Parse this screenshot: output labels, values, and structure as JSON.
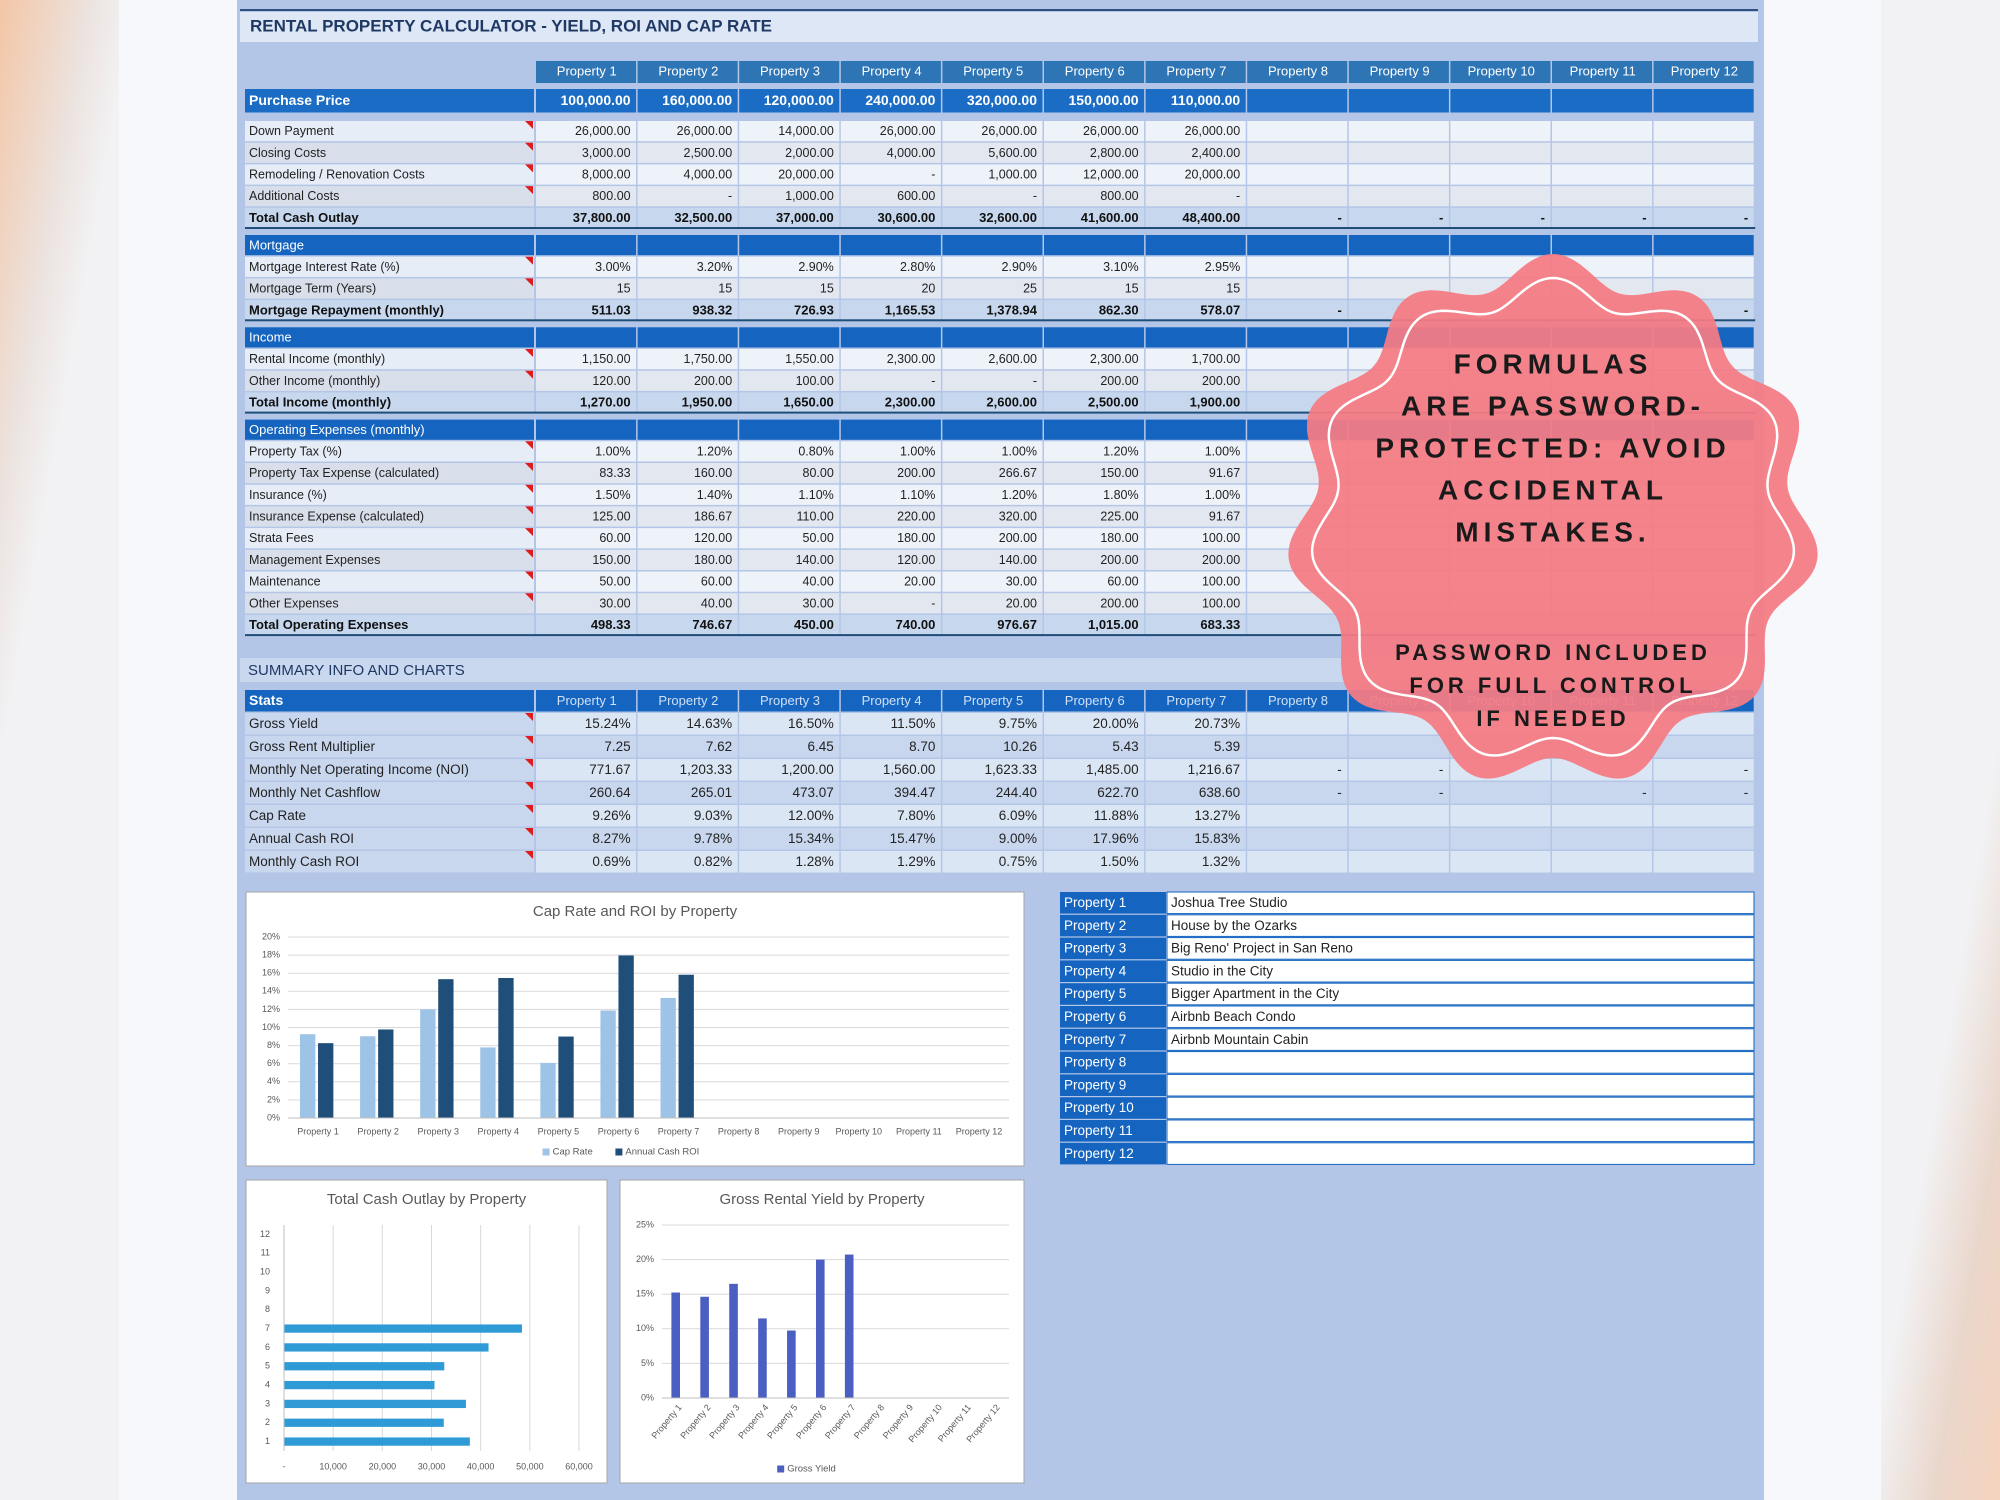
{
  "sheet": {
    "title": "RENTAL PROPERTY CALCULATOR - YIELD, ROI AND CAP RATE",
    "columns": [
      "Property 1",
      "Property 2",
      "Property 3",
      "Property 4",
      "Property 5",
      "Property 6",
      "Property 7",
      "Property 8",
      "Property 9",
      "Property 10",
      "Property 11",
      "Property 12"
    ],
    "purchase_price": {
      "label": "Purchase Price",
      "values": [
        "100,000.00",
        "160,000.00",
        "120,000.00",
        "240,000.00",
        "320,000.00",
        "150,000.00",
        "110,000.00",
        null,
        null,
        null,
        null,
        null
      ]
    },
    "sections": [
      {
        "rows": [
          {
            "label": "Down Payment",
            "values": [
              "26,000.00",
              "26,000.00",
              "14,000.00",
              "26,000.00",
              "26,000.00",
              "26,000.00",
              "26,000.00",
              null,
              null,
              null,
              null,
              null
            ]
          },
          {
            "label": "Closing Costs",
            "values": [
              "3,000.00",
              "2,500.00",
              "2,000.00",
              "4,000.00",
              "5,600.00",
              "2,800.00",
              "2,400.00",
              null,
              null,
              null,
              null,
              null
            ]
          },
          {
            "label": "Remodeling / Renovation Costs",
            "values": [
              "8,000.00",
              "4,000.00",
              "20,000.00",
              "-",
              "1,000.00",
              "12,000.00",
              "20,000.00",
              null,
              null,
              null,
              null,
              null
            ]
          },
          {
            "label": "Additional Costs",
            "values": [
              "800.00",
              "-",
              "1,000.00",
              "600.00",
              "-",
              "800.00",
              "-",
              null,
              null,
              null,
              null,
              null
            ]
          }
        ],
        "total": {
          "label": "Total Cash Outlay",
          "values": [
            "37,800.00",
            "32,500.00",
            "37,000.00",
            "30,600.00",
            "32,600.00",
            "41,600.00",
            "48,400.00",
            "-",
            "-",
            "-",
            "-",
            "-"
          ]
        }
      },
      {
        "title": "Mortgage",
        "rows": [
          {
            "label": "Mortgage Interest Rate (%)",
            "values": [
              "3.00%",
              "3.20%",
              "2.90%",
              "2.80%",
              "2.90%",
              "3.10%",
              "2.95%",
              null,
              null,
              null,
              null,
              null
            ]
          },
          {
            "label": "Mortgage Term (Years)",
            "values": [
              "15",
              "15",
              "15",
              "20",
              "25",
              "15",
              "15",
              null,
              null,
              null,
              null,
              null
            ]
          }
        ],
        "total": {
          "label": "Mortgage Repayment (monthly)",
          "values": [
            "511.03",
            "938.32",
            "726.93",
            "1,165.53",
            "1,378.94",
            "862.30",
            "578.07",
            "-",
            null,
            null,
            null,
            "-"
          ]
        }
      },
      {
        "title": "Income",
        "rows": [
          {
            "label": "Rental Income (monthly)",
            "values": [
              "1,150.00",
              "1,750.00",
              "1,550.00",
              "2,300.00",
              "2,600.00",
              "2,300.00",
              "1,700.00",
              null,
              null,
              null,
              null,
              null
            ]
          },
          {
            "label": "Other Income (monthly)",
            "values": [
              "120.00",
              "200.00",
              "100.00",
              "-",
              "-",
              "200.00",
              "200.00",
              null,
              null,
              null,
              null,
              null
            ]
          }
        ],
        "total": {
          "label": "Total Income (monthly)",
          "values": [
            "1,270.00",
            "1,950.00",
            "1,650.00",
            "2,300.00",
            "2,600.00",
            "2,500.00",
            "1,900.00",
            null,
            null,
            null,
            null,
            null
          ]
        }
      },
      {
        "title": "Operating Expenses (monthly)",
        "rows": [
          {
            "label": "Property Tax (%)",
            "values": [
              "1.00%",
              "1.20%",
              "0.80%",
              "1.00%",
              "1.00%",
              "1.20%",
              "1.00%",
              null,
              null,
              null,
              null,
              null
            ]
          },
          {
            "label": "Property Tax Expense (calculated)",
            "values": [
              "83.33",
              "160.00",
              "80.00",
              "200.00",
              "266.67",
              "150.00",
              "91.67",
              null,
              null,
              null,
              null,
              null
            ]
          },
          {
            "label": "Insurance (%)",
            "values": [
              "1.50%",
              "1.40%",
              "1.10%",
              "1.10%",
              "1.20%",
              "1.80%",
              "1.00%",
              null,
              null,
              null,
              null,
              null
            ]
          },
          {
            "label": "Insurance Expense (calculated)",
            "values": [
              "125.00",
              "186.67",
              "110.00",
              "220.00",
              "320.00",
              "225.00",
              "91.67",
              null,
              null,
              null,
              null,
              null
            ]
          },
          {
            "label": "Strata Fees",
            "values": [
              "60.00",
              "120.00",
              "50.00",
              "180.00",
              "200.00",
              "180.00",
              "100.00",
              null,
              null,
              null,
              null,
              null
            ]
          },
          {
            "label": "Management Expenses",
            "values": [
              "150.00",
              "180.00",
              "140.00",
              "120.00",
              "140.00",
              "200.00",
              "200.00",
              null,
              null,
              null,
              null,
              null
            ]
          },
          {
            "label": "Maintenance",
            "values": [
              "50.00",
              "60.00",
              "40.00",
              "20.00",
              "30.00",
              "60.00",
              "100.00",
              null,
              null,
              null,
              null,
              null
            ]
          },
          {
            "label": "Other Expenses",
            "values": [
              "30.00",
              "40.00",
              "30.00",
              "-",
              "20.00",
              "200.00",
              "100.00",
              null,
              null,
              null,
              null,
              null
            ]
          }
        ],
        "total": {
          "label": "Total Operating Expenses",
          "values": [
            "498.33",
            "746.67",
            "450.00",
            "740.00",
            "976.67",
            "1,015.00",
            "683.33",
            null,
            null,
            null,
            null,
            null
          ]
        }
      }
    ],
    "summary_title": "SUMMARY INFO AND CHARTS",
    "stats": {
      "title": "Stats",
      "rows": [
        {
          "label": "Gross Yield",
          "values": [
            "15.24%",
            "14.63%",
            "16.50%",
            "11.50%",
            "9.75%",
            "20.00%",
            "20.73%",
            null,
            null,
            null,
            null,
            null
          ]
        },
        {
          "label": "Gross Rent Multiplier",
          "values": [
            "7.25",
            "7.62",
            "6.45",
            "8.70",
            "10.26",
            "5.43",
            "5.39",
            null,
            null,
            null,
            null,
            null
          ]
        },
        {
          "label": "Monthly Net Operating Income (NOI)",
          "values": [
            "771.67",
            "1,203.33",
            "1,200.00",
            "1,560.00",
            "1,623.33",
            "1,485.00",
            "1,216.67",
            "-",
            "-",
            null,
            null,
            "-"
          ]
        },
        {
          "label": "Monthly Net Cashflow",
          "values": [
            "260.64",
            "265.01",
            "473.07",
            "394.47",
            "244.40",
            "622.70",
            "638.60",
            "-",
            "-",
            null,
            "-",
            "-"
          ]
        },
        {
          "label": "Cap Rate",
          "values": [
            "9.26%",
            "9.03%",
            "12.00%",
            "7.80%",
            "6.09%",
            "11.88%",
            "13.27%",
            null,
            null,
            null,
            null,
            null
          ]
        },
        {
          "label": "Annual Cash ROI",
          "values": [
            "8.27%",
            "9.78%",
            "15.34%",
            "15.47%",
            "9.00%",
            "17.96%",
            "15.83%",
            null,
            null,
            null,
            null,
            null
          ]
        },
        {
          "label": "Monthly Cash ROI",
          "values": [
            "0.69%",
            "0.82%",
            "1.28%",
            "1.29%",
            "0.75%",
            "1.50%",
            "1.32%",
            null,
            null,
            null,
            null,
            null
          ]
        }
      ]
    },
    "property_names": [
      "Joshua Tree Studio",
      "House by the Ozarks",
      "Big Reno' Project in San Reno",
      "Studio in the City",
      "Bigger Apartment in the City",
      "Airbnb Beach Condo",
      "Airbnb Mountain Cabin"
    ]
  },
  "badge": {
    "headline": [
      "FORMULAS",
      "ARE PASSWORD-",
      "PROTECTED: AVOID",
      "ACCIDENTAL",
      "MISTAKES."
    ],
    "note": [
      "PASSWORD INCLUDED",
      "FOR FULL CONTROL",
      "IF NEEDED"
    ]
  },
  "chart_data": [
    {
      "type": "bar",
      "title": "Cap Rate and ROI by Property",
      "categories": [
        "Property 1",
        "Property 2",
        "Property 3",
        "Property 4",
        "Property 5",
        "Property 6",
        "Property 7",
        "Property 8",
        "Property 9",
        "Property 10",
        "Property 11",
        "Property 12"
      ],
      "series": [
        {
          "name": "Cap Rate",
          "color": "#9dc3e6",
          "values": [
            9.26,
            9.03,
            12.0,
            7.8,
            6.09,
            11.88,
            13.27,
            null,
            null,
            null,
            null,
            null
          ]
        },
        {
          "name": "Annual Cash ROI",
          "color": "#1f4e79",
          "values": [
            8.27,
            9.78,
            15.34,
            15.47,
            9.0,
            17.96,
            15.83,
            null,
            null,
            null,
            null,
            null
          ]
        }
      ],
      "ylim": [
        0,
        20
      ],
      "yticks": [
        {
          "value": 0,
          "label": "0%"
        },
        {
          "value": 2,
          "label": "2%"
        },
        {
          "value": 4,
          "label": "4%"
        },
        {
          "value": 6,
          "label": "6%"
        },
        {
          "value": 8,
          "label": "8%"
        },
        {
          "value": 10,
          "label": "10%"
        },
        {
          "value": 12,
          "label": "12%"
        },
        {
          "value": 14,
          "label": "14%"
        },
        {
          "value": 16,
          "label": "16%"
        },
        {
          "value": 18,
          "label": "18%"
        },
        {
          "value": 20,
          "label": "20%"
        }
      ],
      "grid": true,
      "legend": "bottom"
    },
    {
      "type": "barh",
      "title": "Total Cash Outlay by Property",
      "categories": [
        "1",
        "2",
        "3",
        "4",
        "5",
        "6",
        "7",
        "8",
        "9",
        "10",
        "11",
        "12"
      ],
      "values": [
        37800,
        32500,
        37000,
        30600,
        32600,
        41600,
        48400,
        null,
        null,
        null,
        null,
        null
      ],
      "color": "#2e9bd6",
      "xlim": [
        0,
        60000
      ],
      "xticks": [
        {
          "value": 0,
          "label": "-"
        },
        {
          "value": 10000,
          "label": "10,000"
        },
        {
          "value": 20000,
          "label": "20,000"
        },
        {
          "value": 30000,
          "label": "30,000"
        },
        {
          "value": 40000,
          "label": "40,000"
        },
        {
          "value": 50000,
          "label": "50,000"
        },
        {
          "value": 60000,
          "label": "60,000"
        }
      ],
      "grid": true
    },
    {
      "type": "bar",
      "title": "Gross Rental Yield by Property",
      "categories": [
        "Property 1",
        "Property 2",
        "Property 3",
        "Property 4",
        "Property 5",
        "Property 6",
        "Property 7",
        "Property 8",
        "Property 9",
        "Property 10",
        "Property 11",
        "Property 12"
      ],
      "series": [
        {
          "name": "Gross Yield",
          "color": "#4a5fc1",
          "values": [
            15.24,
            14.63,
            16.5,
            11.5,
            9.75,
            20.0,
            20.73,
            null,
            null,
            null,
            null,
            null
          ]
        }
      ],
      "ylim": [
        0,
        25
      ],
      "yticks": [
        {
          "value": 0,
          "label": "0%"
        },
        {
          "value": 5,
          "label": "5%"
        },
        {
          "value": 10,
          "label": "10%"
        },
        {
          "value": 15,
          "label": "15%"
        },
        {
          "value": 20,
          "label": "20%"
        },
        {
          "value": 25,
          "label": "25%"
        }
      ],
      "grid": true,
      "legend": "bottom"
    }
  ]
}
